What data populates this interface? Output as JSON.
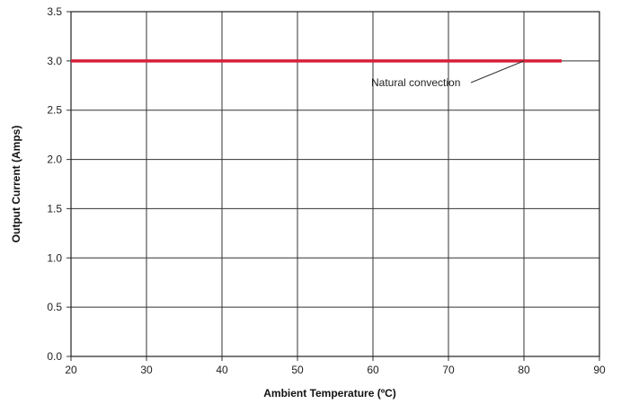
{
  "chart_data": {
    "type": "line",
    "title": "",
    "xlabel": "Ambient Temperature (ºC)",
    "ylabel": "Output Current (Amps)",
    "xlim": [
      20,
      90
    ],
    "ylim": [
      0.0,
      3.5
    ],
    "xticks": [
      20,
      30,
      40,
      50,
      60,
      70,
      80,
      90
    ],
    "xtick_labels": [
      "20",
      "30",
      "40",
      "50",
      "60",
      "70",
      "80",
      "90"
    ],
    "yticks": [
      0.0,
      0.5,
      1.0,
      1.5,
      2.0,
      2.5,
      3.0,
      3.5
    ],
    "ytick_labels": [
      "0.0",
      "0.5",
      "1.0",
      "1.5",
      "2.0",
      "2.5",
      "3.0",
      "3.5"
    ],
    "grid": true,
    "legend": "none",
    "series": [
      {
        "name": "Natural convection",
        "color": "#d6203a",
        "x": [
          20,
          85
        ],
        "y": [
          3.0,
          3.0
        ]
      }
    ],
    "annotations": [
      {
        "text": "Natural convection",
        "points_to": {
          "x": 80,
          "y": 3.0
        },
        "series": 0
      }
    ]
  }
}
